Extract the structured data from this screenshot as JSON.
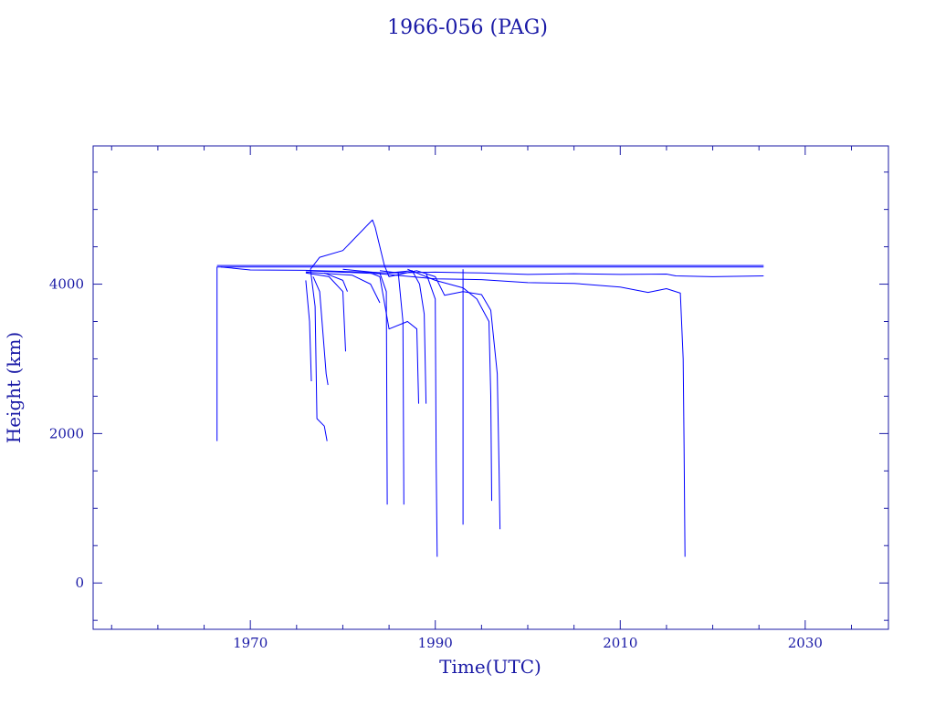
{
  "chart_data": {
    "type": "line",
    "title": "1966-056 (PAG)",
    "xlabel": "Time(UTC)",
    "ylabel": "Height (km)",
    "xlim": [
      1953.0,
      2039.0
    ],
    "ylim": [
      -620,
      5850
    ],
    "x_ticks": [
      1970,
      1990,
      2010,
      2030
    ],
    "y_ticks": [
      0,
      2000,
      4000
    ],
    "grid": false,
    "colors": {
      "axis": "#1a1aa6",
      "line": "#0000ff"
    },
    "series": [
      {
        "values": [
          [
            1966.4,
            1900
          ],
          [
            1966.4,
            4230
          ],
          [
            2025.5,
            4230
          ]
        ]
      },
      {
        "values": [
          [
            1966.4,
            4250
          ],
          [
            2025.5,
            4250
          ]
        ]
      },
      {
        "values": [
          [
            1966.8,
            4230
          ],
          [
            1970,
            4190
          ],
          [
            1976,
            4185
          ],
          [
            1980,
            4170
          ],
          [
            1985,
            4150
          ],
          [
            1990,
            4160
          ],
          [
            1995,
            4150
          ],
          [
            2000,
            4130
          ],
          [
            2005,
            4140
          ],
          [
            2010,
            4130
          ],
          [
            2015,
            4135
          ],
          [
            2016,
            4110
          ],
          [
            2020,
            4100
          ],
          [
            2025.5,
            4110
          ]
        ]
      },
      {
        "values": [
          [
            1976,
            4180
          ],
          [
            1984,
            4140
          ],
          [
            1990,
            4070
          ],
          [
            1995,
            4060
          ],
          [
            2000,
            4020
          ],
          [
            2005,
            4010
          ],
          [
            2010,
            3960
          ],
          [
            2013,
            3890
          ],
          [
            2015,
            3940
          ],
          [
            2016.5,
            3880
          ],
          [
            2016.8,
            3000
          ],
          [
            2016.9,
            1800
          ],
          [
            2017.0,
            350
          ]
        ]
      },
      {
        "values": [
          [
            1976.5,
            4200
          ],
          [
            1977.5,
            4360
          ],
          [
            1980,
            4450
          ],
          [
            1983.2,
            4860
          ],
          [
            1983.5,
            4760
          ],
          [
            1984.5,
            4250
          ],
          [
            1985,
            4100
          ],
          [
            1988,
            4180
          ],
          [
            1990,
            4100
          ],
          [
            1991,
            3850
          ],
          [
            1993,
            3900
          ],
          [
            1995,
            3860
          ],
          [
            1996,
            3650
          ],
          [
            1996.7,
            2800
          ],
          [
            1996.9,
            1500
          ],
          [
            1997.0,
            720
          ]
        ]
      },
      {
        "values": [
          [
            1987,
            4200
          ],
          [
            1990,
            4050
          ],
          [
            1993,
            3950
          ],
          [
            1994.5,
            3800
          ],
          [
            1995.8,
            3500
          ],
          [
            1996,
            2500
          ],
          [
            1996.1,
            1100
          ]
        ]
      },
      {
        "values": [
          [
            1989,
            4150
          ],
          [
            1990,
            3800
          ],
          [
            1990.1,
            1600
          ],
          [
            1990.2,
            350
          ]
        ]
      },
      {
        "values": [
          [
            1993,
            4200
          ],
          [
            1993,
            780
          ]
        ]
      },
      {
        "values": [
          [
            1983,
            4150
          ],
          [
            1984,
            4100
          ],
          [
            1985,
            3400
          ],
          [
            1987,
            3500
          ],
          [
            1988,
            3400
          ],
          [
            1988.2,
            2400
          ]
        ]
      },
      {
        "values": [
          [
            1984,
            4180
          ],
          [
            1986,
            4150
          ],
          [
            1986.5,
            3500
          ],
          [
            1986.6,
            1050
          ]
        ]
      },
      {
        "values": [
          [
            1985,
            4150
          ],
          [
            1987.5,
            4180
          ],
          [
            1988.3,
            4000
          ],
          [
            1988.8,
            3600
          ],
          [
            1989,
            2400
          ]
        ]
      },
      {
        "values": [
          [
            1980,
            4200
          ],
          [
            1984,
            4150
          ],
          [
            1984.7,
            3900
          ],
          [
            1984.8,
            1050
          ]
        ]
      },
      {
        "values": [
          [
            1976,
            4150
          ],
          [
            1978.5,
            4100
          ],
          [
            1980,
            3900
          ],
          [
            1980.3,
            3100
          ]
        ]
      },
      {
        "values": [
          [
            1976.8,
            4100
          ],
          [
            1977.5,
            3900
          ],
          [
            1978.2,
            2800
          ],
          [
            1978.4,
            2650
          ]
        ]
      },
      {
        "values": [
          [
            1976.5,
            4200
          ],
          [
            1977,
            3700
          ],
          [
            1977.2,
            2200
          ],
          [
            1978,
            2100
          ],
          [
            1978.3,
            1900
          ]
        ]
      },
      {
        "values": [
          [
            1976,
            4050
          ],
          [
            1976.4,
            3500
          ],
          [
            1976.6,
            2700
          ]
        ]
      },
      {
        "values": [
          [
            1978,
            4150
          ],
          [
            1980,
            4050
          ],
          [
            1980.5,
            3900
          ]
        ]
      },
      {
        "values": [
          [
            1976,
            4160
          ],
          [
            1981,
            4120
          ],
          [
            1983,
            4000
          ],
          [
            1984,
            3750
          ]
        ]
      }
    ]
  }
}
